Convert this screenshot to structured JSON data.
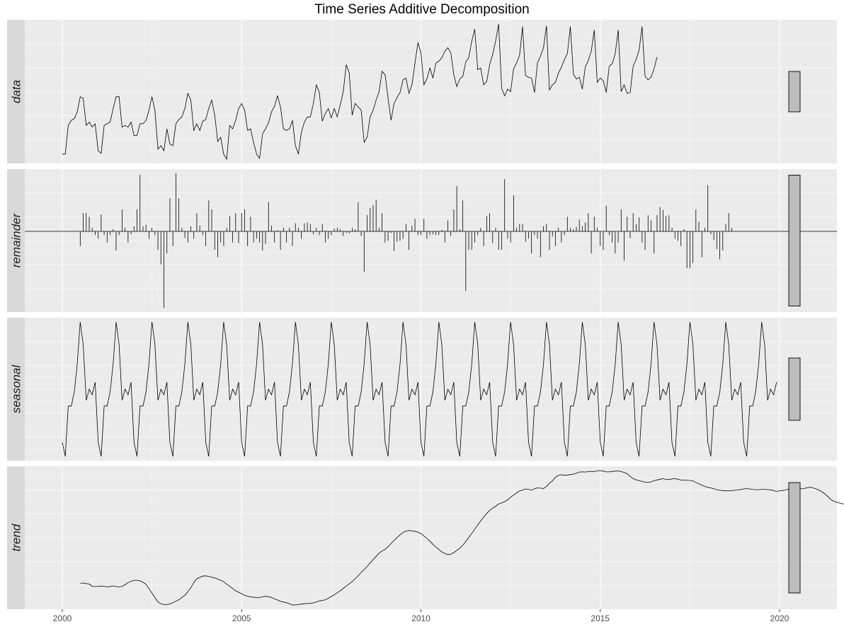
{
  "chart_data": {
    "type": "line",
    "title": "Time Series Additive Decomposition",
    "x_ticks": [
      2000,
      2005,
      2010,
      2015,
      2020
    ],
    "xlim": [
      1999.0,
      2021.4
    ],
    "grid": true,
    "panels": [
      {
        "name": "data",
        "style": "line",
        "range_bar_height": 57,
        "values": [
          -12.0,
          -12.0,
          5.0,
          8.0,
          9.0,
          13.0,
          22.0,
          21.0,
          5.0,
          7.0,
          4.0,
          6.0,
          -10.0,
          -11.5,
          5.0,
          6.0,
          7.0,
          15.0,
          22.0,
          22.0,
          4.0,
          5.0,
          4.0,
          7.0,
          -1.0,
          -1.0,
          6.0,
          6.0,
          8.0,
          14.0,
          22.0,
          14.0,
          -9.0,
          -7.0,
          -10.0,
          3.0,
          -6.0,
          -7.0,
          6.0,
          8.5,
          10.0,
          15.0,
          24.0,
          20.0,
          2.0,
          6.0,
          2.0,
          7.5,
          8.5,
          15.0,
          20.0,
          11.0,
          -4.5,
          -2.0,
          -12.0,
          -15.0,
          5.0,
          3.0,
          8.0,
          15.0,
          18.0,
          14.0,
          2.0,
          3.0,
          -5.0,
          -12.0,
          -14.5,
          0.0,
          3.0,
          6.5,
          13.0,
          16.5,
          22.5,
          16.0,
          3.0,
          2.0,
          3.0,
          8.0,
          -7.0,
          -12.0,
          1.0,
          7.0,
          10.0,
          10.0,
          18.0,
          29.0,
          24.5,
          7.5,
          12.0,
          15.0,
          9.5,
          15.0,
          10.0,
          17.0,
          25.0,
          41.0,
          36.0,
          11.0,
          18.0,
          16.0,
          14.0,
          -5.0,
          -2.0,
          10.0,
          14.0,
          20.0,
          25.0,
          37.0,
          35.0,
          21.0,
          8.0,
          18.0,
          21.5,
          24.5,
          32.0,
          33.0,
          24.0,
          29.0,
          42.0,
          54.0,
          48.0,
          29.0,
          32.5,
          39.0,
          33.0,
          42.0,
          43.0,
          45.0,
          49.0,
          51.0,
          48.0,
          35.0,
          28.0,
          32.5,
          34.0,
          42.5,
          45.0,
          55.0,
          62.0,
          38.0,
          39.0,
          29.0,
          31.0,
          41.0,
          47.0,
          55.0,
          65.0,
          27.0,
          22.5,
          26.5,
          25.0,
          38.5,
          42.0,
          46.5,
          63.5,
          34.5,
          33.5,
          33.0,
          24.5,
          42.0,
          46.0,
          51.0,
          64.0,
          26.0,
          29.0,
          30.5,
          36.0,
          39.5,
          44.0,
          47.5,
          63.5,
          35.5,
          32.5,
          33.5,
          26.5,
          39.5,
          43.5,
          49.0,
          61.5,
          30.5,
          33.0,
          31.5,
          24.5,
          40.0,
          41.5,
          47.5,
          61.5,
          25.0,
          29.0,
          24.0,
          24.5,
          40.0,
          44.0,
          49.5,
          63.5,
          34.0,
          32.0,
          33.5,
          38.5,
          45.5
        ]
      },
      {
        "name": "remainder",
        "style": "spikes",
        "range_bar_height": 185,
        "values": [
          0.0,
          0.0,
          0.0,
          0.0,
          0.0,
          0.0,
          -2.0,
          2.5,
          2.5,
          2.0,
          0.5,
          -0.5,
          -1.0,
          2.3,
          -0.5,
          -1.5,
          -0.5,
          0.3,
          -2.6,
          -0.5,
          3.0,
          0.5,
          -1.5,
          -0.4,
          0.7,
          3.0,
          7.7,
          0.7,
          0.9,
          -1.0,
          0.5,
          -0.5,
          -2.5,
          -4.5,
          -10.4,
          -3.0,
          4.5,
          -2.0,
          7.9,
          4.5,
          0.5,
          -0.9,
          -1.5,
          0.7,
          -1.0,
          2.5,
          0.8,
          -0.5,
          -2.0,
          4.2,
          3.0,
          -2.5,
          -3.5,
          -1.5,
          -2.0,
          0.5,
          2.1,
          -1.5,
          2.5,
          -1.6,
          2.5,
          3.0,
          -2.0,
          2.0,
          -1.5,
          -1.0,
          -1.5,
          -2.6,
          -1.7,
          4.0,
          0.8,
          -1.5,
          0.2,
          -2.5,
          0.5,
          -1.5,
          0.5,
          -2.0,
          1.1,
          0.5,
          -1.0,
          1.1,
          1.2,
          1.0,
          -0.4,
          0.5,
          -0.5,
          1.0,
          -1.5,
          -1.0,
          -0.5,
          0.4,
          0.5,
          0.3,
          -0.6,
          -0.2,
          -0.3,
          0.5,
          0.3,
          4.0,
          -0.6,
          -5.5,
          2.2,
          3.2,
          3.6,
          4.3,
          0.5,
          2.5,
          -1.5,
          -1.3,
          -0.2,
          -2.7,
          -1.4,
          -1.3,
          -1.0,
          1.0,
          -2.5,
          0.8,
          1.7,
          -0.5,
          -0.5,
          1.7,
          -1.0,
          -0.5,
          -0.4,
          -0.5,
          -0.5,
          0.2,
          -1.5,
          1.5,
          -0.6,
          3.0,
          6.2,
          0.3,
          4.2,
          -8.1,
          -2.5,
          -2.5,
          -1.5,
          -0.5,
          0.5,
          -2.0,
          2.1,
          2.5,
          -1.6,
          0.5,
          -2.5,
          -2.5,
          7.1,
          -1.0,
          -1.5,
          4.9,
          0.5,
          1.0,
          1.0,
          -1.4,
          -1.0,
          -3.0,
          -0.5,
          -1.0,
          -3.5,
          0.7,
          1.0,
          -2.5,
          -0.7,
          -2.0,
          0.5,
          -1.5,
          -0.5,
          2.0,
          0.5,
          0.3,
          0.6,
          1.6,
          0.7,
          1.2,
          2.5,
          -3.0,
          2.0,
          0.5,
          -2.0,
          -2.5,
          3.5,
          -0.5,
          -1.5,
          -3.0,
          -1.5,
          3.0,
          -4.0,
          2.0,
          -0.9,
          2.5,
          1.0,
          1.9,
          -1.5,
          -2.5,
          2.2,
          1.5,
          -3.0,
          2.2,
          3.3,
          2.9,
          2.1,
          2.2,
          0.5,
          -1.0,
          -1.3,
          -2.0,
          0.3,
          -5.0,
          -5.0,
          -4.3,
          3.0,
          1.3,
          -3.5,
          0.5,
          6.3,
          -0.4,
          -1.2,
          -2.4,
          -3.8,
          -2.6,
          1.0,
          2.5,
          0.5
        ]
      },
      {
        "name": "seasonal",
        "style": "line",
        "range_bar_height": 88,
        "cycle": [
          -10.0,
          -15.0,
          3.0,
          3.0,
          8.0,
          18.0,
          33.0,
          25.0,
          5.0,
          9.0,
          7.0,
          11.5
        ],
        "years": 20
      },
      {
        "name": "trend",
        "style": "line",
        "range_bar_height": 156,
        "start_month": 6,
        "values": [
          14.0,
          14.2,
          13.8,
          13.5,
          12.0,
          11.8,
          12.0,
          12.2,
          12.0,
          11.6,
          11.9,
          12.3,
          11.8,
          11.6,
          12.0,
          13.0,
          14.5,
          15.3,
          16.0,
          16.0,
          15.7,
          14.7,
          13.3,
          10.5,
          7.5,
          4.5,
          1.5,
          0.3,
          -0.2,
          -0.2,
          0.2,
          1.0,
          2.0,
          3.0,
          4.5,
          6.0,
          8.5,
          11.0,
          14.5,
          17.0,
          18.0,
          18.8,
          19.0,
          18.6,
          18.1,
          17.6,
          16.8,
          16.0,
          15.0,
          13.5,
          12.0,
          10.5,
          9.0,
          8.0,
          7.0,
          6.0,
          5.3,
          5.0,
          4.6,
          4.5,
          4.5,
          5.0,
          5.3,
          5.0,
          4.5,
          3.6,
          2.8,
          2.0,
          1.5,
          1.0,
          0.3,
          -0.5,
          -0.4,
          -0.2,
          0.1,
          0.3,
          0.5,
          0.6,
          0.9,
          1.6,
          2.2,
          2.5,
          3.0,
          4.0,
          5.2,
          6.2,
          7.7,
          9.0,
          10.6,
          12.2,
          13.6,
          15.1,
          17.0,
          19.1,
          21.2,
          23.2,
          25.3,
          27.6,
          29.9,
          32.0,
          34.2,
          35.6,
          36.7,
          38.5,
          40.6,
          42.6,
          44.6,
          46.4,
          48.0,
          48.9,
          49.3,
          49.0,
          48.8,
          48.1,
          47.3,
          45.7,
          44.0,
          42.2,
          40.1,
          38.3,
          36.6,
          35.0,
          34.0,
          33.2,
          33.5,
          34.5,
          36.0,
          37.5,
          39.5,
          42.0,
          44.6,
          47.4,
          50.2,
          53.0,
          55.7,
          58.2,
          60.7,
          62.8,
          64.2,
          65.5,
          67.0,
          67.8,
          68.6,
          69.8,
          71.5,
          73.0,
          74.5,
          75.7,
          76.4,
          77.1,
          76.8,
          76.3,
          77.2,
          77.8,
          77.6,
          77.4,
          78.8,
          81.0,
          82.5,
          84.8,
          86.3,
          86.6,
          86.2,
          86.4,
          86.7,
          87.0,
          87.6,
          88.4,
          88.5,
          88.4,
          88.7,
          88.9,
          88.7,
          89.2,
          89.4,
          89.0,
          88.5,
          88.5,
          88.8,
          89.0,
          89.1,
          88.7,
          88.2,
          87.2,
          85.5,
          84.0,
          83.2,
          82.7,
          82.1,
          81.6,
          81.4,
          81.8,
          82.6,
          83.1,
          83.6,
          84.0,
          83.5,
          83.4,
          83.8,
          84.0,
          83.6,
          83.0,
          83.0,
          82.8,
          82.8,
          82.5,
          81.5,
          80.5,
          79.6,
          78.8,
          78.2,
          77.8,
          77.2,
          76.6,
          76.2,
          76.0,
          75.8,
          75.9,
          76.0,
          76.2,
          76.4,
          76.7,
          77.1,
          77.3,
          77.1,
          76.8,
          76.6,
          76.6,
          76.8,
          76.8,
          76.6,
          76.5,
          76.0,
          75.4,
          75.9,
          76.0,
          76.4,
          77.0,
          77.5,
          77.6,
          77.6,
          77.2,
          77.3,
          77.8,
          78.2,
          78.0,
          77.3,
          76.5,
          75.5,
          74.0,
          72.3,
          70.3,
          69.0,
          68.2,
          67.7,
          67.2,
          66.8,
          66.8,
          66.8,
          66.8,
          66.5,
          66.8,
          67.5,
          68.8,
          70.0,
          70.5,
          71.0,
          71.7,
          72.7,
          73.0,
          72.3,
          71.8
        ]
      }
    ]
  }
}
